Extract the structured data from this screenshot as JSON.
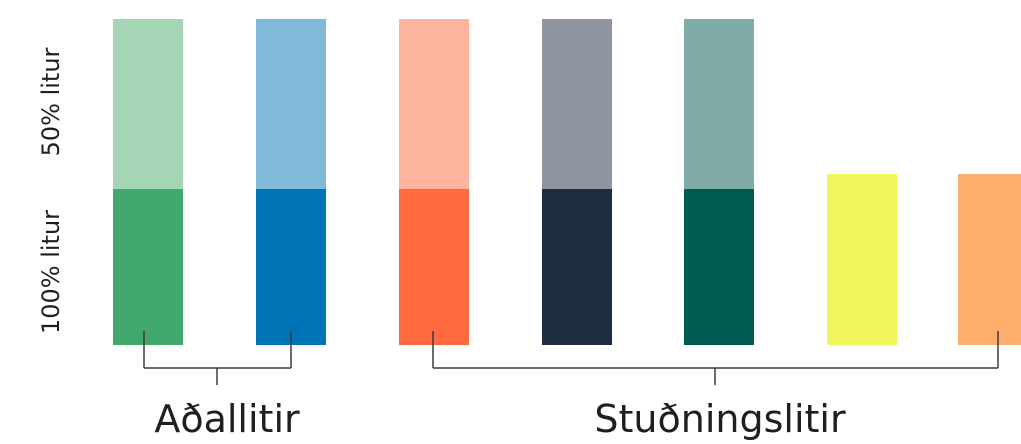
{
  "row_labels": {
    "top": "50% litur",
    "bottom": "100% litur"
  },
  "group_labels": {
    "primary": "Aðallitir",
    "secondary": "Stuðningslitir"
  },
  "swatches": [
    {
      "id": "green",
      "group": "primary",
      "tint_50": "#a4d6b6",
      "full_100": "#41a86e"
    },
    {
      "id": "blue",
      "group": "primary",
      "tint_50": "#81b9d8",
      "full_100": "#0072b6"
    },
    {
      "id": "coral",
      "group": "secondary",
      "tint_50": "#ffb4a0",
      "full_100": "#ff6a3f"
    },
    {
      "id": "navy",
      "group": "secondary",
      "tint_50": "#8e95a0",
      "full_100": "#1f2d40"
    },
    {
      "id": "teal",
      "group": "secondary",
      "tint_50": "#80aca7",
      "full_100": "#005a4f"
    },
    {
      "id": "yellow",
      "group": "secondary",
      "tint_50": null,
      "full_100": "#eff55c"
    },
    {
      "id": "orange",
      "group": "secondary",
      "tint_50": null,
      "full_100": "#ffaf6c"
    }
  ]
}
